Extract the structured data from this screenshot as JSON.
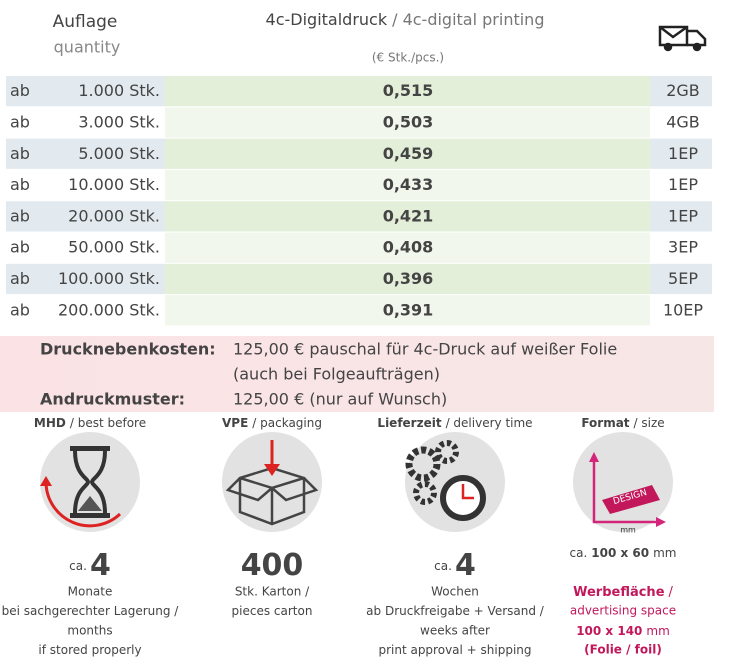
{
  "header": {
    "quantity": "Auflage",
    "quantity_en": "quantity",
    "title": "4c-Digitaldruck",
    "title_en": "/ 4c-digital printing",
    "unit": "(€ Stk./pcs.)"
  },
  "table": {
    "rows": [
      [
        "ab",
        "1.000 Stk.",
        "0,515",
        "2GB"
      ],
      [
        "ab",
        "3.000 Stk.",
        "0,503",
        "4GB"
      ],
      [
        "ab",
        "5.000 Stk.",
        "0,459",
        "1EP"
      ],
      [
        "ab",
        "10.000 Stk.",
        "0,433",
        "1EP"
      ],
      [
        "ab",
        "20.000 Stk.",
        "0,421",
        "1EP"
      ],
      [
        "ab",
        "50.000 Stk.",
        "0,408",
        "3EP"
      ],
      [
        "ab",
        "100.000 Stk.",
        "0,396",
        "5EP"
      ],
      [
        "ab",
        "200.000 Stk.",
        "0,391",
        "10EP"
      ]
    ]
  },
  "extra_costs": [
    {
      "label": "Drucknebenkosten:",
      "lines": [
        "125,00 € pauschal für 4c-Druck auf weißer Folie",
        "(auch bei Folgeaufträgen)"
      ]
    },
    {
      "label": "Andruckmuster:",
      "lines": [
        "125,00 € (nur auf Wunsch)"
      ]
    }
  ],
  "features": [
    {
      "title": "MHD",
      "title_en": "/ best before",
      "prefix": "ca.",
      "value": "4",
      "lines": [
        "Monate",
        "bei sachgerechter Lagerung /",
        "months",
        "if stored properly"
      ]
    },
    {
      "title": "VPE",
      "title_en": "/ packaging",
      "value": "400",
      "lines": [
        "Stk. Karton /",
        "pieces carton"
      ]
    },
    {
      "title": "Lieferzeit",
      "title_en": "/ delivery time",
      "prefix": "ca.",
      "value": "4",
      "lines": [
        "Wochen",
        "ab Druckfreigabe + Versand /",
        "weeks after",
        "print approval + shipping"
      ]
    }
  ],
  "format": {
    "title": "Format",
    "title_en": "/ size",
    "icon_label": "DESIGN",
    "icon_unit": "mm",
    "prefix": "ca.",
    "value": "100 x 60",
    "unit": "mm",
    "highlight": "Werbefläche",
    "highlight_sep": "/",
    "highlight_en": "advertising space",
    "area": "100 x 140",
    "area_unit": "mm",
    "note": "(Folie / foil)"
  }
}
